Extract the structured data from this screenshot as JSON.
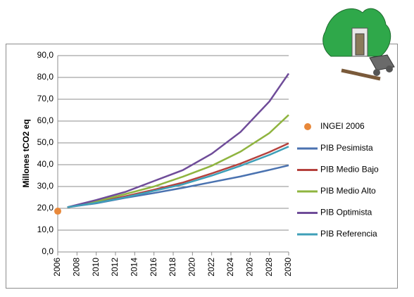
{
  "chart_data": {
    "type": "line",
    "y_label": "Millones tCO2 eq",
    "x": [
      2007,
      2010,
      2013,
      2016,
      2019,
      2022,
      2025,
      2028,
      2030
    ],
    "series": [
      {
        "name": "PIB Pesimista",
        "color": "#4a72b0",
        "values": [
          20.5,
          22.3,
          24.8,
          27,
          29.4,
          32,
          34.6,
          37.6,
          39.7
        ]
      },
      {
        "name": "PIB Medio Bajo",
        "color": "#b5413d",
        "values": [
          20.5,
          22.8,
          25.5,
          28.5,
          31.8,
          36,
          40.5,
          45.8,
          49.8
        ]
      },
      {
        "name": "PIB Medio Alto",
        "color": "#8fb43f",
        "values": [
          20.5,
          23.2,
          26.5,
          30,
          34.5,
          39.5,
          46,
          54.5,
          62.8
        ]
      },
      {
        "name": "PIB Optimista",
        "color": "#6f4c99",
        "values": [
          20.5,
          23.8,
          27.5,
          32.5,
          37.5,
          45,
          55,
          69,
          81.8
        ]
      },
      {
        "name": "PIB Referencia",
        "color": "#3e9fb8",
        "values": [
          20.5,
          22.5,
          25,
          28,
          31,
          35,
          39.5,
          44.5,
          48.3
        ]
      }
    ],
    "points": [
      {
        "name": "INGEI 2006",
        "color": "#e8883a",
        "x": [
          2006
        ],
        "values": [
          18.7
        ]
      }
    ],
    "xlim": [
      2006,
      2030
    ],
    "xticks": [
      2006,
      2008,
      2010,
      2012,
      2014,
      2016,
      2018,
      2020,
      2022,
      2024,
      2026,
      2028,
      2030
    ],
    "ylim": [
      0,
      90
    ],
    "yticks": [
      {
        "value": 0,
        "label": "0,0"
      },
      {
        "value": 10,
        "label": "10,0"
      },
      {
        "value": 20,
        "label": "20,0"
      },
      {
        "value": 30,
        "label": "30,0"
      },
      {
        "value": 40,
        "label": "40,0"
      },
      {
        "value": 50,
        "label": "50,0"
      },
      {
        "value": 60,
        "label": "60,0"
      },
      {
        "value": 70,
        "label": "70,0"
      },
      {
        "value": 80,
        "label": "80,0"
      },
      {
        "value": 90,
        "label": "90,0"
      }
    ],
    "grid": true
  }
}
